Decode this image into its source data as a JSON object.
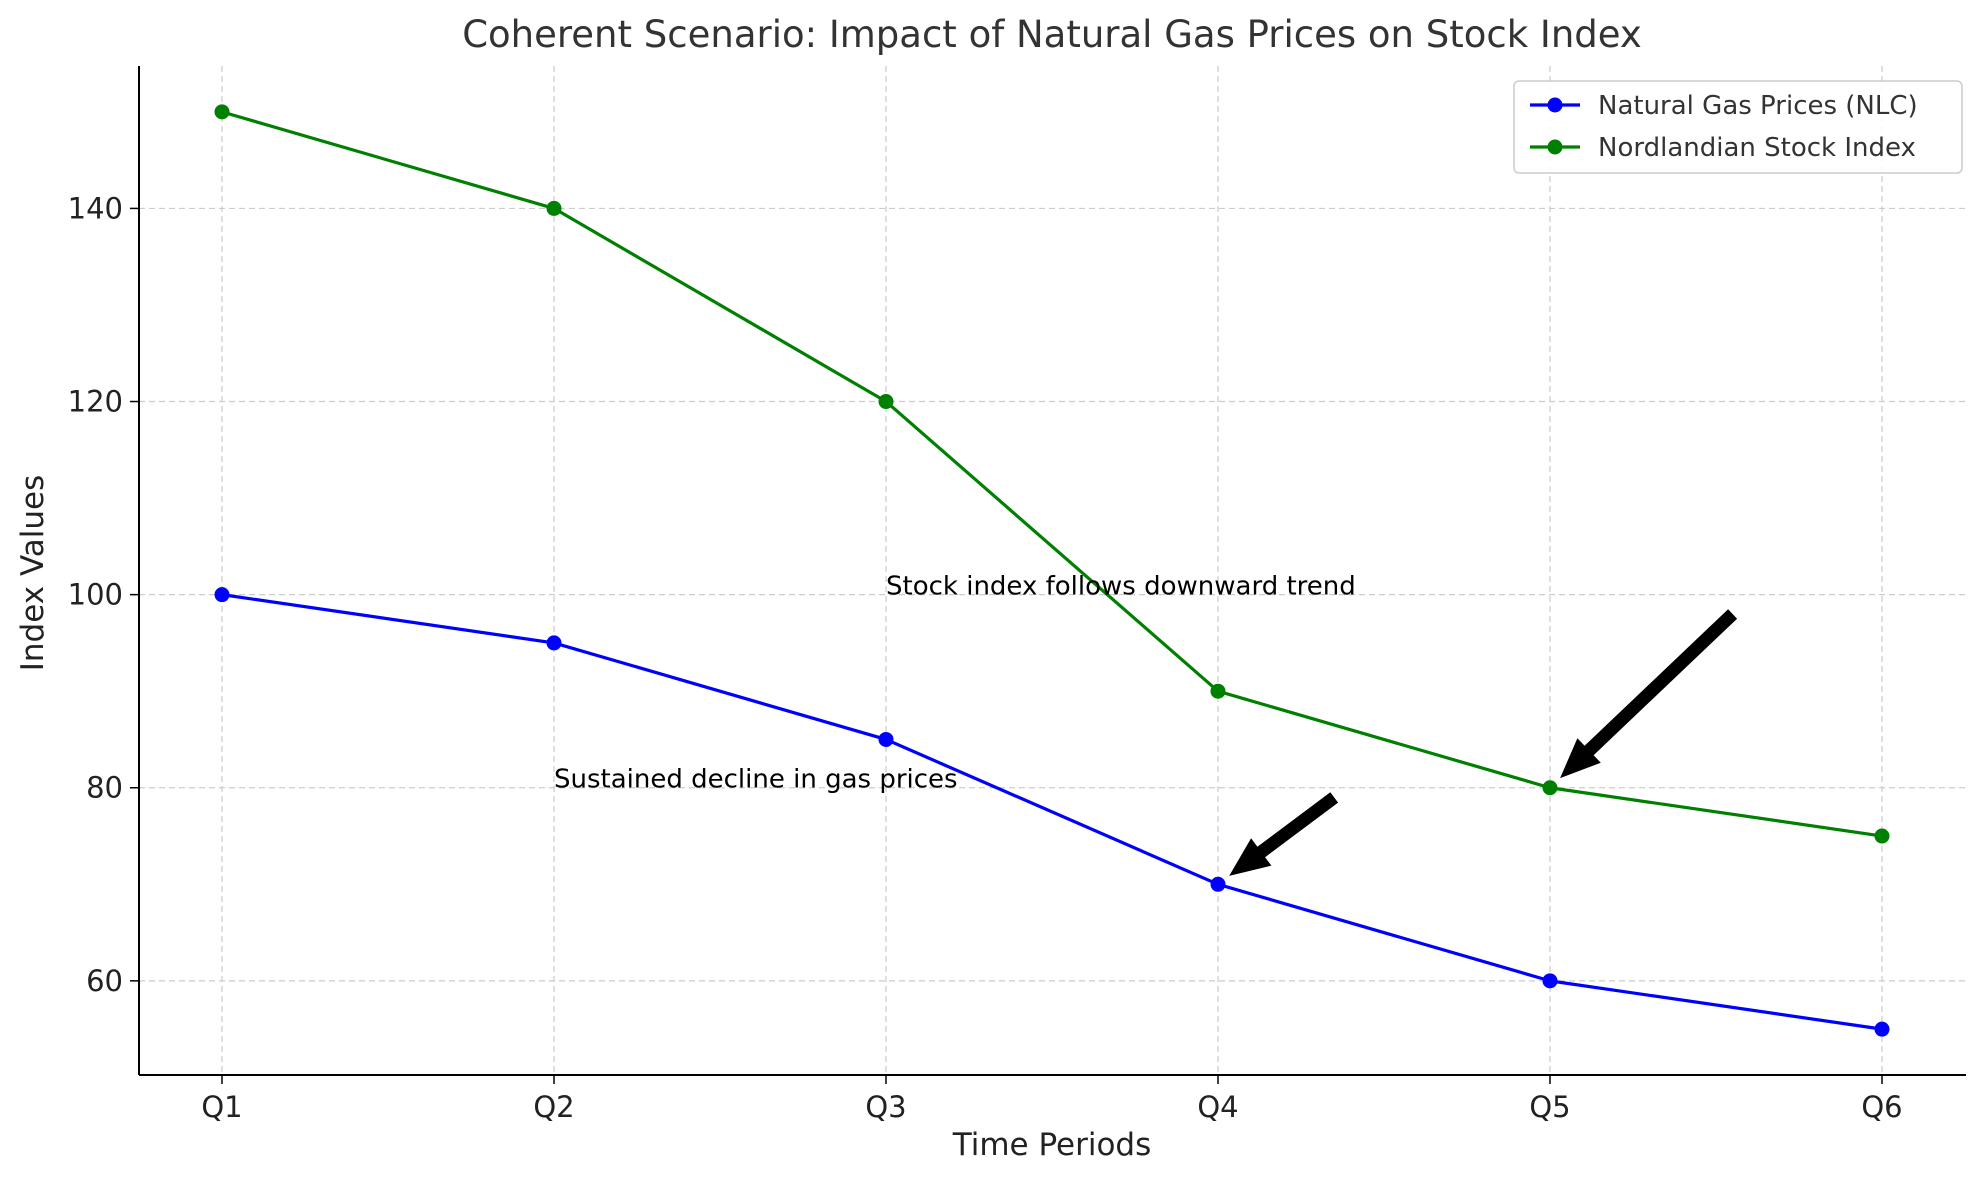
{
  "chart_data": {
    "type": "line",
    "title": "Coherent Scenario: Impact of Natural Gas Prices on Stock Index",
    "xlabel": "Time Periods",
    "ylabel": "Index Values",
    "categories": [
      "Q1",
      "Q2",
      "Q3",
      "Q4",
      "Q5",
      "Q6"
    ],
    "ylim": [
      50.25,
      154.75
    ],
    "yticks": [
      60,
      80,
      100,
      120,
      140
    ],
    "grid": true,
    "grid_style": "dashed",
    "legend_position": "top-right",
    "series": [
      {
        "name": "Natural Gas Prices (NLC)",
        "color": "#0000ff",
        "marker": "circle",
        "values": [
          100,
          95,
          85,
          70,
          60,
          55
        ]
      },
      {
        "name": "Nordlandian Stock Index",
        "color": "#008000",
        "marker": "circle",
        "values": [
          150,
          140,
          120,
          90,
          80,
          75
        ]
      }
    ],
    "annotations": [
      {
        "text": "Sustained decline in gas prices",
        "text_xy": [
          "Q2",
          80
        ],
        "arrow_from": [
          3.35,
          79
        ],
        "target": [
          "Q4",
          70
        ]
      },
      {
        "text": "Stock index follows downward trend",
        "text_xy": [
          "Q3",
          100
        ],
        "arrow_from": [
          4.55,
          98
        ],
        "target": [
          "Q5",
          80
        ]
      }
    ]
  }
}
